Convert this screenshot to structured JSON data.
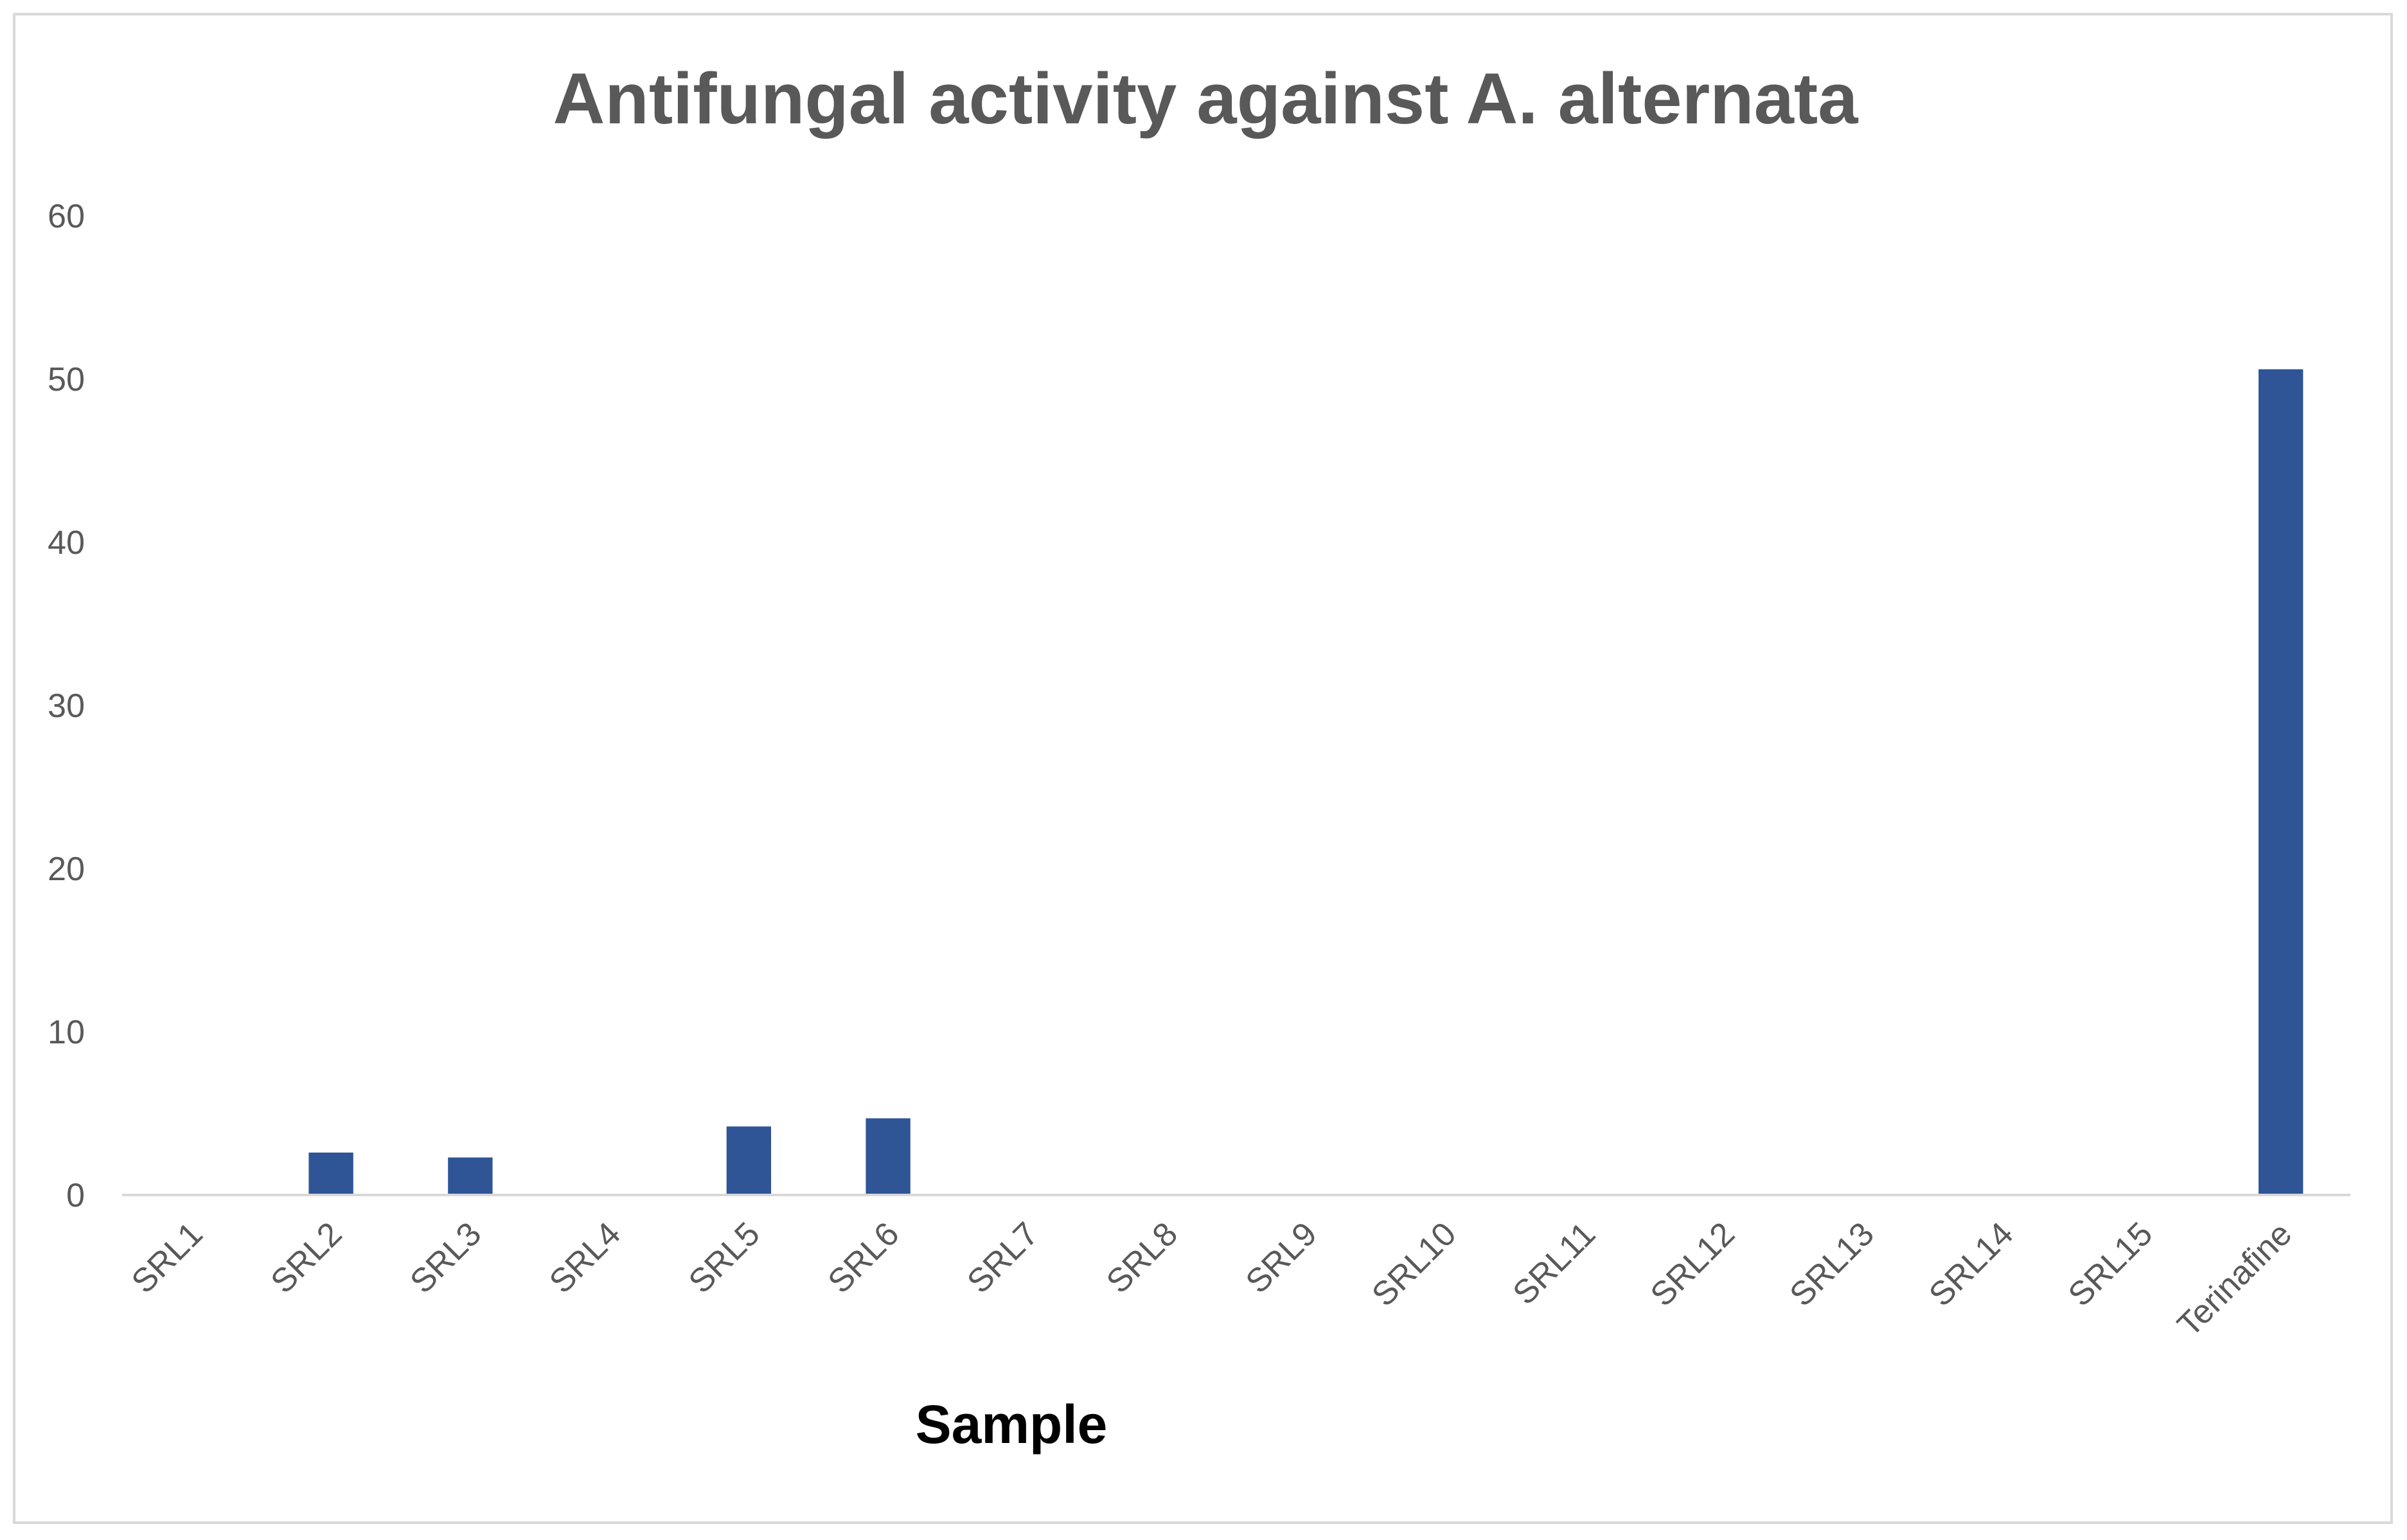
{
  "chart_data": {
    "type": "bar",
    "title": "Antifungal activity against A. alternata",
    "xlabel": "Sample",
    "ylabel": "",
    "categories": [
      "SRL1",
      "SRL2",
      "SRL3",
      "SRL4",
      "SRL5",
      "SRL6",
      "SRL7",
      "SRL8",
      "SRL9",
      "SRL10",
      "SRL11",
      "SRL12",
      "SRL13",
      "SRL14",
      "SRL15",
      "Terinafine"
    ],
    "values": [
      0,
      2.6,
      2.3,
      0,
      4.2,
      4.7,
      0,
      0,
      0,
      0,
      0,
      0,
      0,
      0,
      0,
      50.6
    ],
    "ylim": [
      0,
      60
    ],
    "yticks": [
      0,
      10,
      20,
      30,
      40,
      50,
      60
    ],
    "grid": false,
    "legend": "none",
    "bar_color": "#2f5597"
  }
}
